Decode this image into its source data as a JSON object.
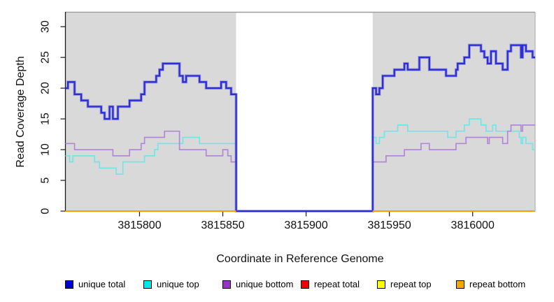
{
  "figure": {
    "x_axis_title": "Coordinate in Reference Genome",
    "y_axis_title": "Read Coverage Depth"
  },
  "chart_data": {
    "type": "line",
    "subtype": "step-after",
    "title": "",
    "xlabel": "Coordinate in Reference Genome",
    "ylabel": "Read Coverage Depth",
    "xlim": [
      3815755.5,
      3816037.5
    ],
    "ylim": [
      0,
      32.35
    ],
    "grid": false,
    "legend_position": "bottom-horizontal",
    "x_ticks": [
      3815800,
      3815850,
      3815900,
      3815950,
      3816000
    ],
    "x_tick_labels": [
      "3815800",
      "3815850",
      "3815900",
      "3815950",
      "3816000"
    ],
    "y_ticks": [
      0,
      5,
      10,
      15,
      20,
      25,
      30
    ],
    "y_tick_labels": [
      "0",
      "5",
      "10",
      "15",
      "20",
      "25",
      "30"
    ],
    "panel_color": "#d9d9d9",
    "gap_color": "#ffffff",
    "background_regions": [
      {
        "name": "covered-left",
        "x0": 3815755.5,
        "x1": 3815858,
        "color": "#d9d9d9"
      },
      {
        "name": "uncovered-gap",
        "x0": 3815858,
        "x1": 3815940,
        "color": "#ffffff"
      },
      {
        "name": "covered-right",
        "x0": 3815940,
        "x1": 3816037.5,
        "color": "#d9d9d9"
      }
    ],
    "series": [
      {
        "name": "unique top",
        "slug": "unique-top",
        "line_color": "#72e6e6",
        "legend_color": "#00e5e5",
        "line_width": 1.7,
        "segments": [
          [
            [
              3815755,
              9
            ],
            [
              3815758,
              8
            ],
            [
              3815760,
              9
            ],
            [
              3815773,
              8
            ],
            [
              3815776,
              7
            ],
            [
              3815786,
              6
            ],
            [
              3815790,
              8
            ],
            [
              3815803,
              9
            ],
            [
              3815809,
              10
            ],
            [
              3815811,
              11
            ],
            [
              3815826,
              12
            ],
            [
              3815836,
              11
            ],
            [
              3815858,
              0
            ],
            [
              3815940,
              12
            ],
            [
              3815942,
              11
            ],
            [
              3815944,
              12
            ],
            [
              3815947,
              13
            ],
            [
              3815955,
              14
            ],
            [
              3815961,
              13
            ],
            [
              3815985,
              12
            ],
            [
              3815990,
              13
            ],
            [
              3815995,
              14
            ],
            [
              3815998,
              15
            ],
            [
              3816005,
              14
            ],
            [
              3816008,
              13
            ],
            [
              3816012,
              14
            ],
            [
              3816014,
              13
            ],
            [
              3816028,
              12
            ],
            [
              3816029,
              11
            ],
            [
              3816030,
              12
            ],
            [
              3816032,
              11
            ],
            [
              3816036,
              10
            ],
            [
              3816038,
              10
            ]
          ]
        ]
      },
      {
        "name": "unique bottom",
        "slug": "unique-bottom",
        "line_color": "#b188d8",
        "legend_color": "#9932cc",
        "line_width": 1.7,
        "segments": [
          [
            [
              3815755,
              11
            ],
            [
              3815761,
              10
            ],
            [
              3815784,
              9
            ],
            [
              3815794,
              10
            ],
            [
              3815801,
              11
            ],
            [
              3815803,
              12
            ],
            [
              3815815,
              13
            ],
            [
              3815824,
              10
            ],
            [
              3815840,
              9
            ],
            [
              3815850,
              10
            ],
            [
              3815853,
              9
            ],
            [
              3815855,
              8
            ],
            [
              3815858,
              0
            ],
            [
              3815940,
              8
            ],
            [
              3815948,
              9
            ],
            [
              3815959,
              10
            ],
            [
              3815969,
              11
            ],
            [
              3815974,
              10
            ],
            [
              3815990,
              11
            ],
            [
              3815996,
              12
            ],
            [
              3816009,
              11
            ],
            [
              3816010,
              12
            ],
            [
              3816018,
              11
            ],
            [
              3816021,
              13
            ],
            [
              3816023,
              14
            ],
            [
              3816029,
              13
            ],
            [
              3816030,
              14
            ],
            [
              3816038,
              14
            ]
          ]
        ]
      },
      {
        "name": "unique total",
        "slug": "unique-total",
        "line_color": "#2d2dd6",
        "legend_color": "#0000cd",
        "line_width": 2.3,
        "halo": true,
        "segments": [
          [
            [
              3815755,
              20
            ],
            [
              3815757,
              21
            ],
            [
              3815761,
              19
            ],
            [
              3815765,
              18
            ],
            [
              3815769,
              17
            ],
            [
              3815777,
              16
            ],
            [
              3815779,
              15
            ],
            [
              3815782,
              17
            ],
            [
              3815784,
              15
            ],
            [
              3815787,
              17
            ],
            [
              3815794,
              18
            ],
            [
              3815801,
              19
            ],
            [
              3815803,
              21
            ],
            [
              3815810,
              22
            ],
            [
              3815812,
              23
            ],
            [
              3815814,
              24
            ],
            [
              3815824,
              22
            ],
            [
              3815826,
              21
            ],
            [
              3815828,
              22
            ],
            [
              3815836,
              21
            ],
            [
              3815840,
              20
            ],
            [
              3815849,
              21
            ],
            [
              3815852,
              20
            ],
            [
              3815855,
              19
            ],
            [
              3815858,
              0
            ],
            [
              3815940,
              20
            ],
            [
              3815942,
              19
            ],
            [
              3815944,
              20
            ],
            [
              3815946,
              22
            ],
            [
              3815953,
              23
            ],
            [
              3815959,
              24
            ],
            [
              3815961,
              23
            ],
            [
              3815968,
              25
            ],
            [
              3815974,
              23
            ],
            [
              3815984,
              22
            ],
            [
              3815990,
              23
            ],
            [
              3815991,
              24
            ],
            [
              3815995,
              25
            ],
            [
              3815998,
              27
            ],
            [
              3816005,
              26
            ],
            [
              3816007,
              25
            ],
            [
              3816009,
              24
            ],
            [
              3816011,
              26
            ],
            [
              3816014,
              24
            ],
            [
              3816018,
              23
            ],
            [
              3816021,
              26
            ],
            [
              3816023,
              27
            ],
            [
              3816029,
              25
            ],
            [
              3816030,
              27
            ],
            [
              3816032,
              26
            ],
            [
              3816036,
              25
            ],
            [
              3816038,
              25
            ]
          ]
        ]
      },
      {
        "name": "repeat total",
        "slug": "repeat-total",
        "line_color": "#e60000",
        "legend_color": "#ee0000",
        "line_width": 1.6,
        "segments": [
          [
            [
              3815755,
              0
            ],
            [
              3815858,
              0
            ]
          ],
          [
            [
              3815940,
              0
            ],
            [
              3816038,
              0
            ]
          ]
        ]
      },
      {
        "name": "repeat top",
        "slug": "repeat-top",
        "line_color": "#ffff00",
        "legend_color": "#ffff00",
        "line_width": 1.6,
        "segments": [
          [
            [
              3815755,
              0
            ],
            [
              3815858,
              0
            ]
          ],
          [
            [
              3815940,
              0
            ],
            [
              3816038,
              0
            ]
          ]
        ]
      },
      {
        "name": "repeat bottom",
        "slug": "repeat-bottom",
        "line_color": "#ff9e00",
        "legend_color": "#ffa500",
        "line_width": 2.0,
        "segments": [
          [
            [
              3815755,
              0
            ],
            [
              3815858,
              0
            ]
          ],
          [
            [
              3815940,
              0
            ],
            [
              3816038,
              0
            ]
          ]
        ]
      }
    ],
    "legend_entries": [
      "unique total",
      "unique top",
      "unique bottom",
      "repeat total",
      "repeat top",
      "repeat bottom"
    ]
  }
}
